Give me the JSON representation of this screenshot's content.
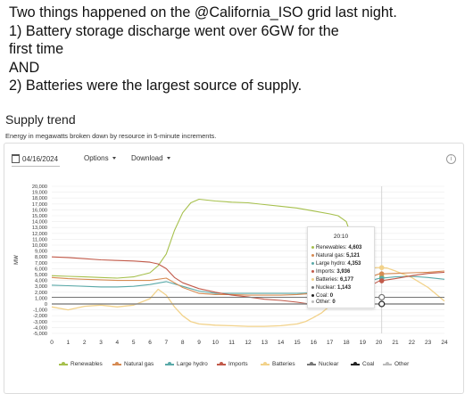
{
  "tweet": {
    "lines": [
      "Two things happened on the @California_ISO grid last night.",
      "1) Battery storage discharge went over 6GW for the",
      "first time",
      "AND",
      "2) Batteries were the largest source of supply."
    ]
  },
  "card": {
    "title": "Supply trend",
    "subtitle": "Energy in megawatts broken down by resource in 5-minute increments.",
    "date": "04/16/2024",
    "options_label": "Options",
    "download_label": "Download",
    "info_icon": "info-icon"
  },
  "colors": {
    "renewables": "#a6c04c",
    "natural_gas": "#d68a52",
    "large_hydro": "#5aa9a8",
    "imports": "#c25a4a",
    "batteries": "#f2d28a",
    "nuclear": "#777777",
    "coal": "#222222",
    "other": "#bbbbbb"
  },
  "tooltip": {
    "time": "20:10",
    "rows": [
      {
        "label": "Renewables:",
        "value": "4,603",
        "key": "renewables"
      },
      {
        "label": "Natural gas:",
        "value": "5,121",
        "key": "natural_gas"
      },
      {
        "label": "Large hydro:",
        "value": "4,353",
        "key": "large_hydro"
      },
      {
        "label": "Imports:",
        "value": "3,936",
        "key": "imports"
      },
      {
        "label": "Batteries:",
        "value": "6,177",
        "key": "batteries"
      },
      {
        "label": "Nuclear:",
        "value": "1,143",
        "key": "nuclear"
      },
      {
        "label": "Coal:",
        "value": "0",
        "key": "coal"
      },
      {
        "label": "Other:",
        "value": "0",
        "key": "other"
      }
    ]
  },
  "chart_data": {
    "type": "line",
    "title": "",
    "xlabel": "",
    "ylabel": "MW",
    "xlim": [
      0,
      24
    ],
    "ylim": [
      -5000,
      20000
    ],
    "x_ticks": [
      "0",
      "1",
      "2",
      "3",
      "4",
      "5",
      "6",
      "7",
      "8",
      "9",
      "10",
      "11",
      "12",
      "13",
      "14",
      "15",
      "16",
      "17",
      "18",
      "19",
      "20",
      "21",
      "22",
      "23",
      "24"
    ],
    "y_ticks": [
      "20,000",
      "19,000",
      "18,000",
      "17,000",
      "16,000",
      "15,000",
      "14,000",
      "13,000",
      "12,000",
      "11,000",
      "10,000",
      "9,000",
      "8,000",
      "7,000",
      "6,000",
      "5,000",
      "4,000",
      "3,000",
      "2,000",
      "1,000",
      "0",
      "-1,000",
      "-2,000",
      "-3,000",
      "-4,000",
      "-5,000"
    ],
    "y_tick_values": [
      20000,
      19000,
      18000,
      17000,
      16000,
      15000,
      14000,
      13000,
      12000,
      11000,
      10000,
      9000,
      8000,
      7000,
      6000,
      5000,
      4000,
      3000,
      2000,
      1000,
      0,
      -1000,
      -2000,
      -3000,
      -4000,
      -5000
    ],
    "grid": true,
    "legend_position": "bottom",
    "series": [
      {
        "name": "Renewables",
        "key": "renewables",
        "x": [
          0,
          1,
          2,
          3,
          4,
          5,
          6,
          6.5,
          7,
          7.5,
          8,
          8.5,
          9,
          10,
          11,
          12,
          13,
          14,
          15,
          16,
          17,
          17.5,
          18,
          18.2
        ],
        "y": [
          4800,
          4700,
          4600,
          4500,
          4400,
          4600,
          5300,
          6500,
          8500,
          12500,
          15500,
          17200,
          17800,
          17500,
          17300,
          17200,
          16900,
          16600,
          16300,
          15800,
          15300,
          15000,
          14000,
          12400
        ]
      },
      {
        "name": "Natural gas",
        "key": "natural_gas",
        "x": [
          0,
          1,
          2,
          3,
          4,
          5,
          6,
          7,
          7.5,
          8,
          9,
          10,
          11,
          12,
          13,
          14,
          15,
          16,
          17,
          18,
          19,
          20,
          21,
          22,
          23,
          24
        ],
        "y": [
          4500,
          4300,
          4200,
          4100,
          4000,
          4000,
          4000,
          4400,
          3600,
          2800,
          1800,
          1600,
          1600,
          1500,
          1500,
          1500,
          1600,
          1800,
          2200,
          2800,
          4100,
          5100,
          5200,
          5300,
          5400,
          5600
        ]
      },
      {
        "name": "Large hydro",
        "key": "large_hydro",
        "x": [
          0,
          1,
          2,
          3,
          4,
          5,
          6,
          7,
          8,
          9,
          10,
          11,
          12,
          13,
          14,
          15,
          16,
          17,
          18,
          19,
          20,
          21,
          22,
          23,
          24
        ],
        "y": [
          3200,
          3100,
          3000,
          2900,
          2900,
          3000,
          3300,
          3800,
          3000,
          2200,
          1800,
          1800,
          1800,
          1800,
          1800,
          1800,
          1900,
          2200,
          2800,
          3600,
          4350,
          4600,
          4700,
          4500,
          4200
        ]
      },
      {
        "name": "Imports",
        "key": "imports",
        "x": [
          0,
          1,
          2,
          3,
          4,
          5,
          6,
          6.5,
          7,
          7.5,
          8,
          9,
          10,
          11,
          12,
          13,
          14,
          15,
          16,
          17,
          18,
          19,
          20,
          21,
          22,
          23,
          24
        ],
        "y": [
          8000,
          7900,
          7700,
          7500,
          7400,
          7300,
          7100,
          6800,
          6000,
          4500,
          3600,
          2600,
          2000,
          1500,
          1200,
          800,
          600,
          300,
          -100,
          -300,
          600,
          2400,
          3900,
          4300,
          4800,
          5200,
          5400
        ]
      },
      {
        "name": "Batteries",
        "key": "batteries",
        "x": [
          0,
          1,
          2,
          3,
          4,
          5,
          6,
          6.5,
          7,
          7.5,
          8,
          8.5,
          9,
          10,
          11,
          12,
          13,
          14,
          15,
          15.5,
          16,
          16.5,
          17,
          17.5,
          18,
          18.5,
          19,
          19.5,
          20,
          20.5,
          21,
          22,
          23,
          24
        ],
        "y": [
          -500,
          -1000,
          -400,
          -200,
          -500,
          -200,
          900,
          2500,
          1500,
          -500,
          -2000,
          -3000,
          -3400,
          -3600,
          -3700,
          -3800,
          -3800,
          -3700,
          -3400,
          -3000,
          -2300,
          -1500,
          -300,
          1500,
          3500,
          5000,
          5800,
          6100,
          6200,
          6100,
          5600,
          4500,
          2800,
          500
        ]
      },
      {
        "name": "Nuclear",
        "key": "nuclear",
        "x": [
          0,
          24
        ],
        "y": [
          1143,
          1143
        ]
      },
      {
        "name": "Coal",
        "key": "coal",
        "x": [
          0,
          24
        ],
        "y": [
          0,
          0
        ]
      },
      {
        "name": "Other",
        "key": "other",
        "x": [
          0,
          24
        ],
        "y": [
          0,
          0
        ]
      }
    ]
  }
}
